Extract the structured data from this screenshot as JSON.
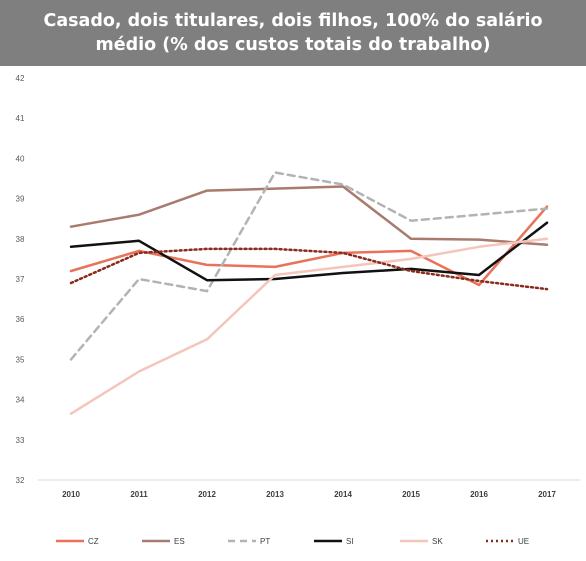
{
  "title": "Casado, dois titulares, dois filhos, 100% do salário médio (% dos custos totais do trabalho)",
  "chart_data": {
    "type": "line",
    "title": "Casado, dois titulares, dois filhos, 100% do salário médio (% dos custos totais do trabalho)",
    "xlabel": "",
    "ylabel": "",
    "ylim": [
      32,
      42
    ],
    "yticks": [
      "32",
      "33",
      "34",
      "35",
      "36",
      "37",
      "38",
      "39",
      "40",
      "41",
      "42"
    ],
    "categories": [
      "2010",
      "2011",
      "2012",
      "2013",
      "2014",
      "2015",
      "2016",
      "2017"
    ],
    "grid": false,
    "legend_position": "bottom",
    "series": [
      {
        "name": "CZ",
        "color": "#e8735a",
        "dash": "solid",
        "values": [
          37.2,
          37.7,
          37.35,
          37.3,
          37.65,
          37.7,
          36.85,
          38.8
        ]
      },
      {
        "name": "ES",
        "color": "#a87b6e",
        "dash": "solid",
        "values": [
          38.3,
          38.6,
          39.2,
          39.25,
          39.3,
          38.0,
          37.98,
          37.85
        ]
      },
      {
        "name": "PT",
        "color": "#b3b3b3",
        "dash": "dashed",
        "values": [
          35.0,
          37.0,
          36.7,
          39.65,
          39.35,
          38.45,
          38.6,
          38.75
        ]
      },
      {
        "name": "SI",
        "color": "#111111",
        "dash": "solid",
        "values": [
          37.8,
          37.95,
          36.97,
          37.0,
          37.15,
          37.25,
          37.1,
          38.4
        ]
      },
      {
        "name": "SK",
        "color": "#f4c6bb",
        "dash": "solid",
        "values": [
          33.65,
          34.7,
          35.5,
          37.1,
          37.3,
          37.5,
          37.8,
          38.0
        ]
      },
      {
        "name": "UE",
        "color": "#8b2b1f",
        "dash": "dotted",
        "values": [
          36.9,
          37.65,
          37.75,
          37.75,
          37.65,
          37.2,
          36.95,
          36.75
        ]
      }
    ]
  }
}
